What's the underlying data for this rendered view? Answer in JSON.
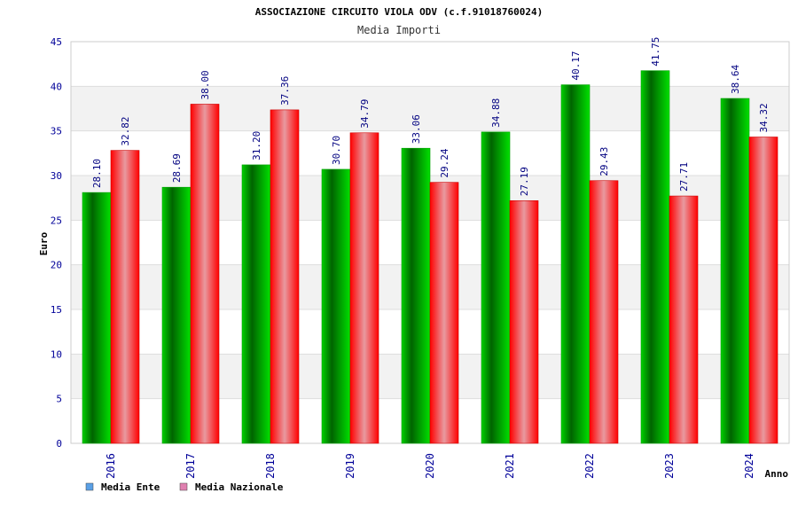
{
  "chart_data": {
    "type": "bar",
    "title": "ASSOCIAZIONE CIRCUITO VIOLA ODV (c.f.91018760024)",
    "subtitle": "Media Importi",
    "xlabel": "Anno",
    "ylabel": "Euro",
    "ylim": [
      0,
      45
    ],
    "yticks": [
      0,
      5,
      10,
      15,
      20,
      25,
      30,
      35,
      40,
      45
    ],
    "grid": true,
    "legend_position": "bottom-left",
    "categories": [
      "2016",
      "2017",
      "2018",
      "2019",
      "2020",
      "2021",
      "2022",
      "2023",
      "2024"
    ],
    "series": [
      {
        "name": "Media Ente",
        "color": "#00b400",
        "legend_color": "#5aa0e6",
        "values": [
          28.1,
          28.69,
          31.2,
          30.7,
          33.06,
          34.88,
          40.17,
          41.75,
          38.64
        ],
        "labels": [
          "28.10",
          "28.69",
          "31.20",
          "30.70",
          "33.06",
          "34.88",
          "40.17",
          "41.75",
          "38.64"
        ]
      },
      {
        "name": "Media Nazionale",
        "color": "#ff2020",
        "legend_color": "#e080b0",
        "values": [
          32.82,
          38.0,
          37.36,
          34.79,
          29.24,
          27.19,
          29.43,
          27.71,
          34.32
        ],
        "labels": [
          "32.82",
          "38.00",
          "37.36",
          "34.79",
          "29.24",
          "27.19",
          "29.43",
          "27.71",
          "34.32"
        ]
      }
    ]
  }
}
